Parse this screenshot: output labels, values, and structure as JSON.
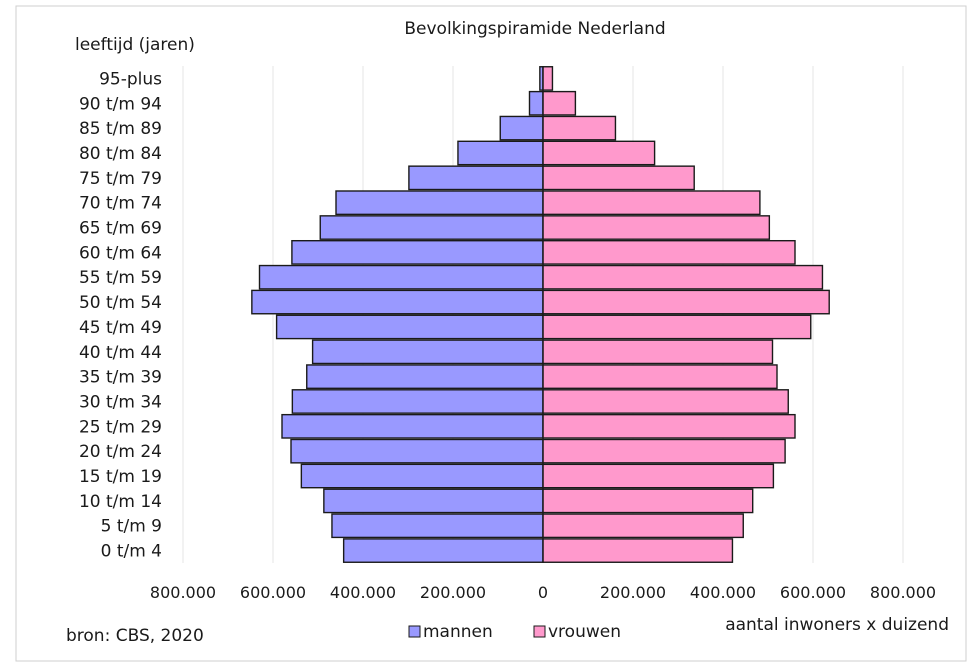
{
  "chart_data": {
    "type": "bar",
    "orientation": "horizontal",
    "title": "Bevolkingspiramide Nederland",
    "ylabel": "leeftijd (jaren)",
    "xlabel": "aantal inwoners x duizend",
    "source": "bron: CBS,  2020",
    "categories": [
      "0 t/m 4",
      "5 t/m 9",
      "10 t/m 14",
      "15 t/m 19",
      "20 t/m 24",
      "25 t/m 29",
      "30 t/m 34",
      "35 t/m 39",
      "40 t/m 44",
      "45 t/m 49",
      "50 t/m 54",
      "55 t/m 59",
      "60 t/m 64",
      "65 t/m 69",
      "70 t/m 74",
      "75 t/m 79",
      "80 t/m 84",
      "85 t/m 89",
      "90 t/m 94",
      "95-plus"
    ],
    "series": [
      {
        "name": "mannen",
        "color": "#9999ff",
        "values": [
          443000,
          469000,
          487000,
          537000,
          560000,
          580000,
          557000,
          525000,
          512000,
          592000,
          647000,
          630000,
          558000,
          495000,
          460000,
          298000,
          189000,
          95000,
          30000,
          7000
        ]
      },
      {
        "name": "vrouwen",
        "color": "#ff99cc",
        "values": [
          421000,
          445000,
          466000,
          512000,
          538000,
          560000,
          545000,
          520000,
          510000,
          595000,
          636000,
          621000,
          560000,
          503000,
          482000,
          336000,
          248000,
          161000,
          72000,
          21000
        ]
      }
    ],
    "xticks": [
      "800.000",
      "600.000",
      "400.000",
      "200.000",
      "0",
      "200.000",
      "400.000",
      "600.000",
      "800.000"
    ],
    "xlim": [
      -800000,
      800000
    ],
    "grid": true,
    "legend": "bottom"
  }
}
